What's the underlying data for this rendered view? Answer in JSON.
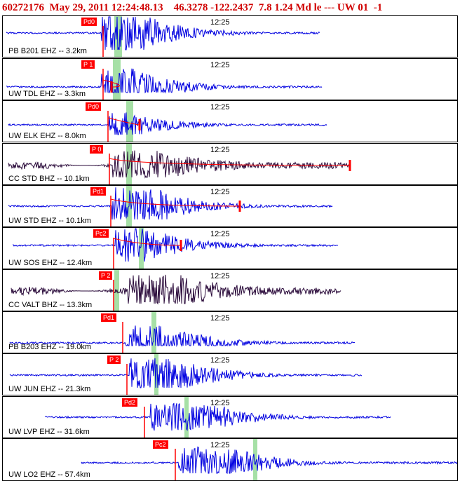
{
  "header": {
    "event_id": "60272176",
    "datetime": "May 29, 2011 12:24:48.13",
    "lat": "46.3278",
    "lon": "-122.2437",
    "depth": "7.8",
    "magnitude": "1.24",
    "mag_type": "Md",
    "extra": "le ---",
    "network": "UW",
    "version": "01",
    "flag": "-1"
  },
  "colors": {
    "trace_blue": "#0000e0",
    "trace_dark": "#2a0a3a",
    "pick_red": "#ff0000",
    "window_green": "#a6e0a6",
    "header_red": "#d00000"
  },
  "panels": [
    {
      "station": "PB B201 EHZ -- 3.2km",
      "time": "12:25",
      "pick": "Pd0"
    },
    {
      "station": "UW TDL EHZ -- 3.3km",
      "time": "12:25",
      "pick": "P 1"
    },
    {
      "station": "UW ELK EHZ -- 8.0km",
      "time": "12:25",
      "pick": "Pd0"
    },
    {
      "station": "CC STD BHZ -- 10.1km",
      "time": "12:25",
      "pick": "P 0"
    },
    {
      "station": "UW STD EHZ -- 10.1km",
      "time": "12:25",
      "pick": "Pd1"
    },
    {
      "station": "UW SOS EHZ -- 12.4km",
      "time": "12:25",
      "pick": "Pc2"
    },
    {
      "station": "CC VALT BHZ -- 13.3km",
      "time": "12:25",
      "pick": "P 2"
    },
    {
      "station": "PB B203 EHZ -- 19.0km",
      "time": "12:25",
      "pick": "Pd1"
    },
    {
      "station": "UW JUN EHZ -- 21.3km",
      "time": "12:25",
      "pick": "P 2"
    },
    {
      "station": "UW LVP EHZ -- 31.6km",
      "time": "12:25",
      "pick": "Pd2"
    },
    {
      "station": "UW LO2 EHZ -- 57.4km",
      "time": "12:25",
      "pick": "Pc2"
    }
  ]
}
